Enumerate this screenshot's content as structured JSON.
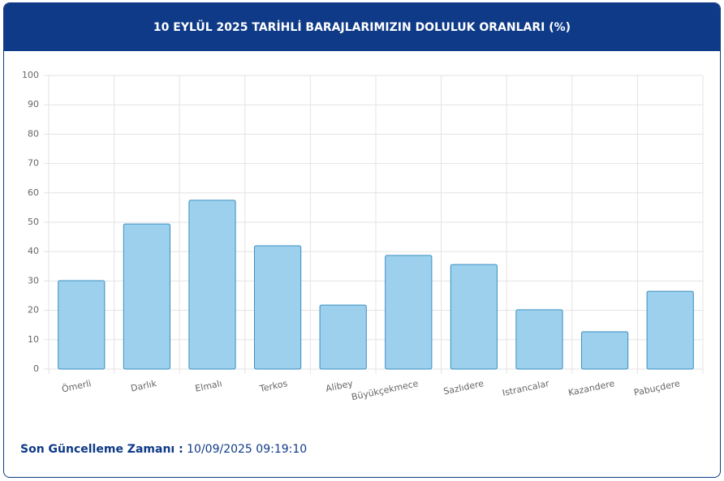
{
  "chart_data": {
    "type": "bar",
    "title": "10 EYLÜL 2025 TARİHLİ BARAJLARIMIZIN DOLULUK ORANLARI (%)",
    "categories": [
      "Ömerli",
      "Darlık",
      "Elmalı",
      "Terkos",
      "Alibey",
      "Büyükçekmece",
      "Sazlıdere",
      "Istrancalar",
      "Kazandere",
      "Pabuçdere"
    ],
    "values": [
      30.1,
      49.4,
      57.5,
      42.0,
      21.8,
      38.7,
      35.6,
      20.2,
      12.7,
      26.5
    ],
    "color": "#9dd0ec",
    "ylim": [
      0,
      100
    ],
    "yticks": [
      0,
      10,
      20,
      30,
      40,
      50,
      60,
      70,
      80,
      90,
      100
    ],
    "grid": true
  },
  "footer": {
    "label": "Son Güncelleme Zamanı :",
    "value": "10/09/2025 09:19:10"
  }
}
